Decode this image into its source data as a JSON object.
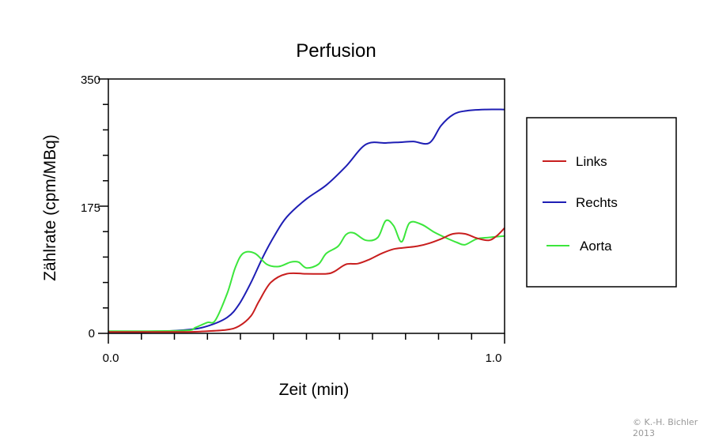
{
  "chart_data": {
    "type": "line",
    "title": "Perfusion",
    "xlabel": "Zeit (min)",
    "ylabel": "Zählrate (cpm/MBq)",
    "xlim": [
      0.0,
      1.0
    ],
    "ylim": [
      0,
      350
    ],
    "x_tick_labels": [
      "0.0",
      "1.0"
    ],
    "y_tick_labels": [
      "0",
      "175",
      "350"
    ],
    "grid": false,
    "legend_position": "right",
    "series": [
      {
        "name": "Links",
        "color": "#c81e1e",
        "x": [
          0.0,
          0.1,
          0.2,
          0.25,
          0.3,
          0.33,
          0.36,
          0.38,
          0.41,
          0.45,
          0.5,
          0.55,
          0.57,
          0.6,
          0.63,
          0.66,
          0.69,
          0.72,
          0.75,
          0.78,
          0.81,
          0.84,
          0.87,
          0.9,
          0.93,
          0.96,
          0.98,
          1.0
        ],
        "y": [
          2,
          2,
          2,
          3,
          5,
          10,
          24,
          44,
          70,
          82,
          82,
          82,
          85,
          95,
          96,
          102,
          110,
          116,
          118,
          120,
          124,
          130,
          137,
          137,
          131,
          128,
          134,
          145
        ]
      },
      {
        "name": "Rechts",
        "color": "#1e1eb4",
        "x": [
          0.0,
          0.1,
          0.2,
          0.25,
          0.3,
          0.33,
          0.36,
          0.39,
          0.42,
          0.45,
          0.5,
          0.55,
          0.6,
          0.65,
          0.7,
          0.74,
          0.77,
          0.81,
          0.84,
          0.87,
          0.9,
          0.95,
          1.0
        ],
        "y": [
          2,
          2,
          5,
          10,
          22,
          40,
          70,
          105,
          135,
          160,
          185,
          204,
          230,
          260,
          262,
          263,
          264,
          262,
          286,
          301,
          306,
          308,
          308
        ]
      },
      {
        "name": "Aorta",
        "color": "#3ce63c",
        "x": [
          0.0,
          0.1,
          0.2,
          0.22,
          0.25,
          0.27,
          0.3,
          0.32,
          0.34,
          0.37,
          0.4,
          0.43,
          0.46,
          0.48,
          0.5,
          0.53,
          0.55,
          0.58,
          0.6,
          0.62,
          0.65,
          0.68,
          0.7,
          0.72,
          0.74,
          0.76,
          0.79,
          0.82,
          0.85,
          0.88,
          0.9,
          0.93,
          0.96,
          1.0
        ],
        "y": [
          3,
          3,
          4,
          8,
          15,
          18,
          55,
          90,
          110,
          110,
          95,
          92,
          98,
          98,
          90,
          95,
          110,
          120,
          136,
          138,
          128,
          132,
          155,
          148,
          126,
          152,
          150,
          140,
          132,
          125,
          122,
          130,
          132,
          134
        ]
      }
    ]
  },
  "credit": {
    "line1": "© K.-H. Bichler",
    "line2": "2013"
  }
}
